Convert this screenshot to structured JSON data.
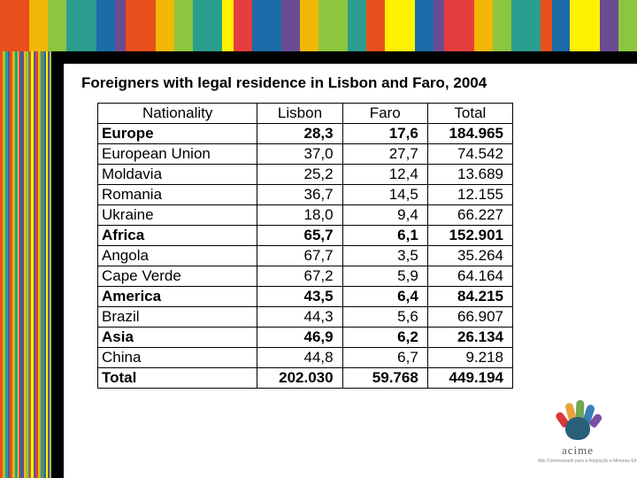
{
  "title": "Foreigners with legal residence in Lisbon and Faro, 2004",
  "stripes": {
    "colors": [
      "#e84f1c",
      "#f2b705",
      "#8cc63f",
      "#2a9d8f",
      "#1b6ca8",
      "#6a4c93",
      "#e84f1c",
      "#f2b705",
      "#8cc63f",
      "#2a9d8f",
      "#fff200",
      "#e53e3e",
      "#1b6ca8",
      "#6a4c93",
      "#f2b705",
      "#8cc63f",
      "#2a9d8f",
      "#e84f1c",
      "#fff200",
      "#1b6ca8",
      "#6a4c93",
      "#e53e3e",
      "#f2b705",
      "#8cc63f",
      "#2a9d8f",
      "#e84f1c",
      "#1b6ca8",
      "#fff200",
      "#6a4c93",
      "#8cc63f"
    ]
  },
  "table": {
    "columns": [
      "Nationality",
      "Lisbon",
      "Faro",
      "Total"
    ],
    "rows": [
      {
        "bold": true,
        "cells": [
          "Europe",
          "28,3",
          "17,6",
          "184.965"
        ]
      },
      {
        "bold": false,
        "cells": [
          "European Union",
          "37,0",
          "27,7",
          "74.542"
        ]
      },
      {
        "bold": false,
        "cells": [
          "Moldavia",
          "25,2",
          "12,4",
          "13.689"
        ]
      },
      {
        "bold": false,
        "cells": [
          "Romania",
          "36,7",
          "14,5",
          "12.155"
        ]
      },
      {
        "bold": false,
        "cells": [
          "Ukraine",
          "18,0",
          "9,4",
          "66.227"
        ]
      },
      {
        "bold": true,
        "cells": [
          "Africa",
          "65,7",
          "6,1",
          "152.901"
        ]
      },
      {
        "bold": false,
        "cells": [
          "Angola",
          "67,7",
          "3,5",
          "35.264"
        ]
      },
      {
        "bold": false,
        "cells": [
          "Cape Verde",
          "67,2",
          "5,9",
          "64.164"
        ]
      },
      {
        "bold": true,
        "cells": [
          "America",
          "43,5",
          "6,4",
          "84.215"
        ]
      },
      {
        "bold": false,
        "cells": [
          "Brazil",
          "44,3",
          "5,6",
          "66.907"
        ]
      },
      {
        "bold": true,
        "cells": [
          "Asia",
          "46,9",
          "6,2",
          "26.134"
        ]
      },
      {
        "bold": false,
        "cells": [
          "China",
          "44,8",
          "6,7",
          "9.218"
        ]
      },
      {
        "bold": true,
        "cells": [
          "Total",
          "202.030",
          "59.768",
          "449.194"
        ]
      }
    ]
  },
  "logo": {
    "text": "acime",
    "subtitle": "Alto Comissariado para a Imigração e Minorias Étnicas"
  }
}
